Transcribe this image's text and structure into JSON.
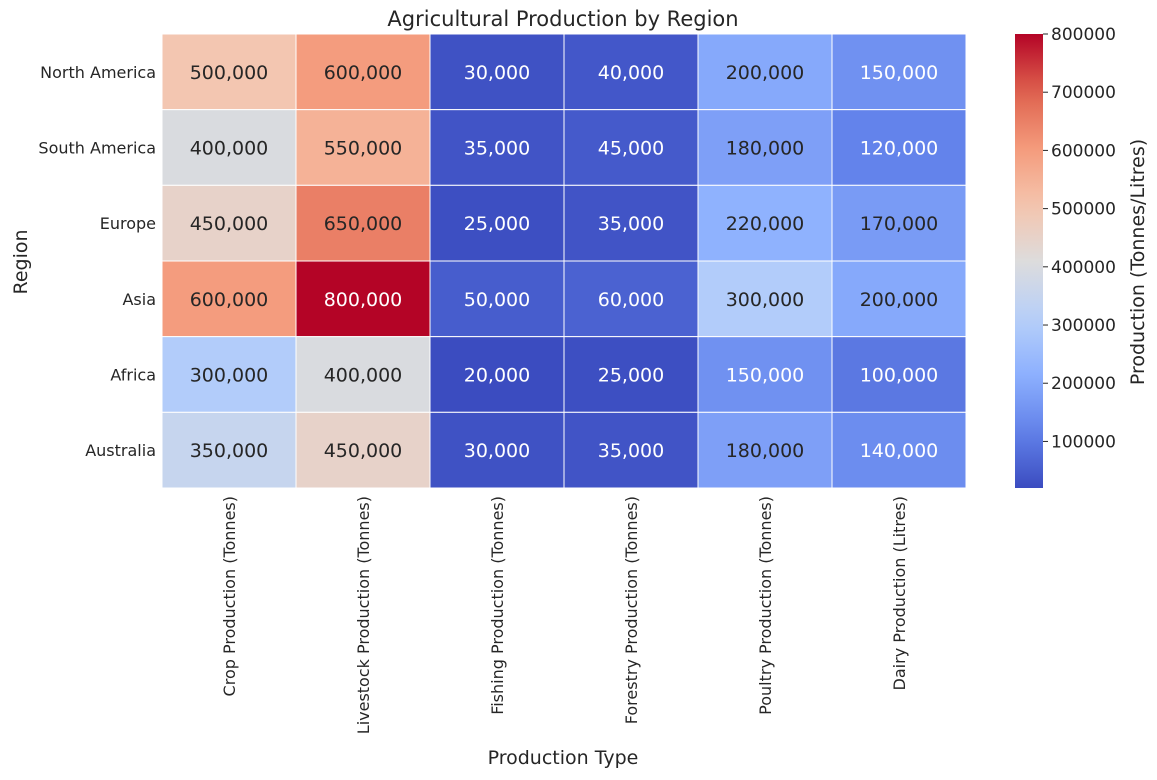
{
  "chart_data": {
    "type": "heatmap",
    "title": "Agricultural Production by Region",
    "xlabel": "Production Type",
    "ylabel": "Region",
    "x_categories": [
      "Crop Production (Tonnes)",
      "Livestock Production (Tonnes)",
      "Fishing Production (Tonnes)",
      "Forestry Production (Tonnes)",
      "Poultry Production (Tonnes)",
      "Dairy Production (Litres)"
    ],
    "y_categories": [
      "North America",
      "South America",
      "Europe",
      "Asia",
      "Africa",
      "Australia"
    ],
    "values": [
      [
        500000,
        600000,
        30000,
        40000,
        200000,
        150000
      ],
      [
        400000,
        550000,
        35000,
        45000,
        180000,
        120000
      ],
      [
        450000,
        650000,
        25000,
        35000,
        220000,
        170000
      ],
      [
        600000,
        800000,
        50000,
        60000,
        300000,
        200000
      ],
      [
        300000,
        400000,
        20000,
        25000,
        150000,
        100000
      ],
      [
        350000,
        450000,
        30000,
        35000,
        180000,
        140000
      ]
    ],
    "value_labels": [
      [
        "500,000",
        "600,000",
        "30,000",
        "40,000",
        "200,000",
        "150,000"
      ],
      [
        "400,000",
        "550,000",
        "35,000",
        "45,000",
        "180,000",
        "120,000"
      ],
      [
        "450,000",
        "650,000",
        "25,000",
        "35,000",
        "220,000",
        "170,000"
      ],
      [
        "600,000",
        "800,000",
        "50,000",
        "60,000",
        "300,000",
        "200,000"
      ],
      [
        "300,000",
        "400,000",
        "20,000",
        "25,000",
        "150,000",
        "100,000"
      ],
      [
        "350,000",
        "450,000",
        "30,000",
        "35,000",
        "180,000",
        "140,000"
      ]
    ],
    "colorbar": {
      "label": "Production (Tonnes/Litres)",
      "range": [
        20000,
        800000
      ],
      "ticks": [
        100000,
        200000,
        300000,
        400000,
        500000,
        600000,
        700000,
        800000
      ],
      "tick_labels": [
        "100000",
        "200000",
        "300000",
        "400000",
        "500000",
        "600000",
        "700000",
        "800000"
      ],
      "colormap": "coolwarm"
    }
  }
}
